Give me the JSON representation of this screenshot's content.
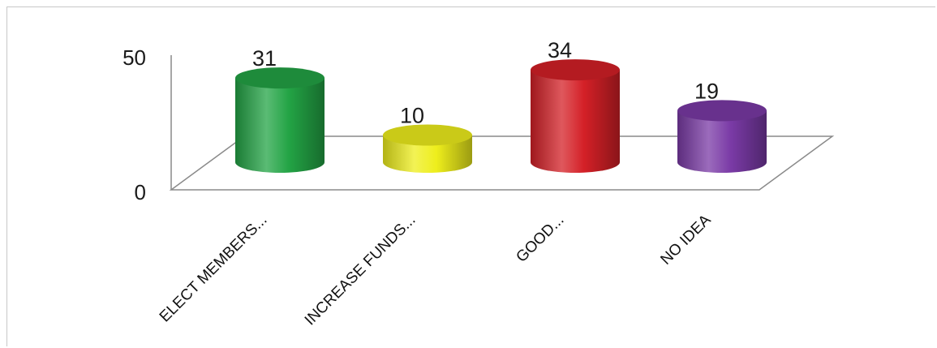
{
  "chart_data": {
    "type": "bar",
    "title": "",
    "xlabel": "",
    "ylabel": "",
    "categories": [
      "ELECT MEMBERS...",
      "INCREASE FUNDS...",
      "GOOD...",
      "NO IDEA"
    ],
    "values": [
      31,
      10,
      34,
      19
    ],
    "ylim": [
      0,
      50
    ],
    "yticks": [
      "0",
      "50"
    ],
    "grid": false,
    "style": "3d-cylinder",
    "colors": [
      "#23a445",
      "#eeee1c",
      "#d42027",
      "#7a3aa6"
    ]
  }
}
